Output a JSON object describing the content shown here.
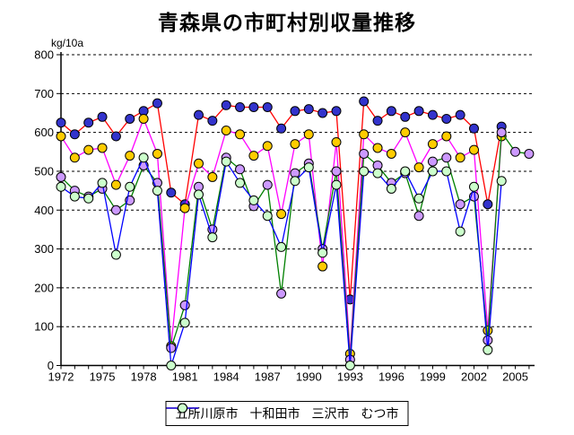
{
  "chart_data": {
    "type": "line",
    "title": "青森県の市町村別収量推移",
    "y_unit": "kg/10a",
    "ylim": [
      0,
      800
    ],
    "y_tick_step": 100,
    "y_tick_labels": [
      "0",
      "100",
      "200",
      "300",
      "400",
      "500",
      "600",
      "700",
      "800"
    ],
    "x_tick_labels": [
      "1972",
      "1975",
      "1978",
      "1981",
      "1984",
      "1987",
      "1990",
      "1993",
      "1996",
      "1999",
      "2002",
      "2005"
    ],
    "grid": "horizontal dashed black",
    "legend_position": "bottom",
    "years": [
      1972,
      1973,
      1974,
      1975,
      1976,
      1977,
      1978,
      1979,
      1980,
      1981,
      1982,
      1983,
      1984,
      1985,
      1986,
      1987,
      1988,
      1989,
      1990,
      1991,
      1992,
      1993,
      1994,
      1995,
      1996,
      1997,
      1998,
      1999,
      2000,
      2001,
      2002,
      2003,
      2004,
      2005,
      2006
    ],
    "series": [
      {
        "id": "goshogawara",
        "name": "五所川原市",
        "line_color": "#FF0000",
        "marker_color": "#3333CC",
        "values": [
          625,
          595,
          625,
          640,
          590,
          635,
          655,
          675,
          445,
          415,
          645,
          630,
          670,
          665,
          665,
          665,
          610,
          655,
          660,
          650,
          655,
          170,
          680,
          630,
          655,
          640,
          655,
          645,
          635,
          645,
          610,
          415,
          615,
          null,
          null
        ]
      },
      {
        "id": "towada",
        "name": "十和田市",
        "line_color": "#FF00FF",
        "marker_color": "#FFCC00",
        "values": [
          590,
          535,
          555,
          560,
          465,
          540,
          635,
          545,
          50,
          405,
          520,
          485,
          605,
          595,
          540,
          565,
          390,
          570,
          595,
          255,
          575,
          30,
          595,
          560,
          545,
          600,
          510,
          570,
          590,
          535,
          555,
          90,
          590,
          null,
          null
        ]
      },
      {
        "id": "misawa",
        "name": "三沢市",
        "line_color": "#008000",
        "marker_color": "#CC99FF",
        "values": [
          485,
          450,
          435,
          455,
          400,
          425,
          515,
          470,
          45,
          155,
          460,
          350,
          535,
          505,
          410,
          465,
          185,
          495,
          520,
          300,
          500,
          15,
          545,
          515,
          470,
          495,
          385,
          525,
          535,
          415,
          435,
          65,
          600,
          550,
          545
        ]
      },
      {
        "id": "mutsu",
        "name": "むつ市",
        "line_color": "#0000FF",
        "marker_color": "#CCFFCC",
        "values": [
          460,
          435,
          430,
          470,
          285,
          460,
          535,
          450,
          0,
          110,
          440,
          330,
          525,
          470,
          425,
          385,
          305,
          475,
          510,
          290,
          465,
          0,
          500,
          495,
          455,
          500,
          430,
          500,
          500,
          345,
          460,
          40,
          475,
          null,
          null
        ]
      }
    ]
  }
}
